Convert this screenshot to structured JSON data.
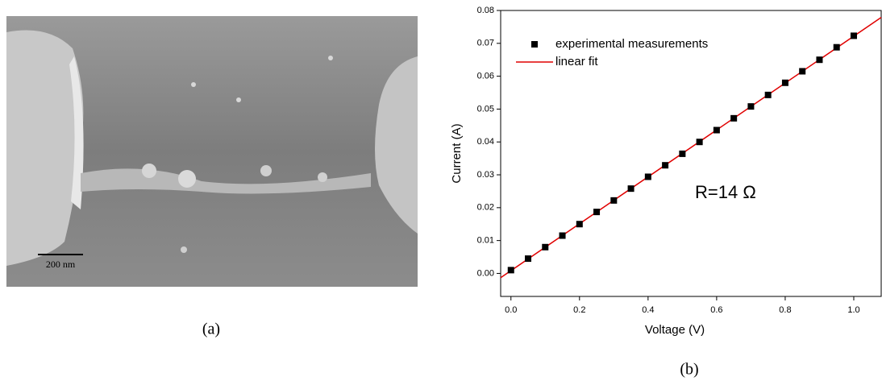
{
  "panels": {
    "a": {
      "label": "(a)",
      "scale_bar": "200 nm"
    },
    "b": {
      "label": "(b)"
    }
  },
  "chart_data": {
    "type": "scatter",
    "xlabel": "Voltage (V)",
    "ylabel": "Current (A)",
    "annotation": "R=14 Ω",
    "legend": "upper left",
    "xlim": [
      -0.03,
      1.08
    ],
    "ylim": [
      -0.007,
      0.08
    ],
    "xticks": [
      {
        "value": 0,
        "label": "0.0"
      },
      {
        "value": 0.2,
        "label": "0.2"
      },
      {
        "value": 0.4,
        "label": "0.4"
      },
      {
        "value": 0.6,
        "label": "0.6"
      },
      {
        "value": 0.8,
        "label": "0.8"
      },
      {
        "value": 1,
        "label": "1.0"
      }
    ],
    "yticks": [
      {
        "value": 0,
        "label": "0.00"
      },
      0.01,
      0.02,
      0.03,
      0.04,
      0.05,
      0.06,
      0.07,
      {
        "value": 0.08,
        "label": "0.08"
      }
    ],
    "series": [
      {
        "name": "experimental measurements",
        "color": "#000000",
        "marker": "square",
        "x": [
          0,
          0.05,
          0.1,
          0.15,
          0.2,
          0.25,
          0.3,
          0.35,
          0.4,
          0.45,
          0.5,
          0.55,
          0.6,
          0.65,
          0.7,
          0.75,
          0.8,
          0.85,
          0.9,
          0.95,
          1
        ],
        "values": [
          0.001,
          0.0045,
          0.008,
          0.0115,
          0.015,
          0.0187,
          0.0222,
          0.0258,
          0.0294,
          0.0329,
          0.0364,
          0.04,
          0.0436,
          0.0472,
          0.0508,
          0.0543,
          0.058,
          0.0615,
          0.065,
          0.0688,
          0.0723
        ]
      },
      {
        "name": "linear fit",
        "color": "#e00000",
        "marker": "line",
        "x": [
          -0.03,
          1.08
        ],
        "values": [
          -0.0013,
          0.0779
        ]
      }
    ]
  }
}
